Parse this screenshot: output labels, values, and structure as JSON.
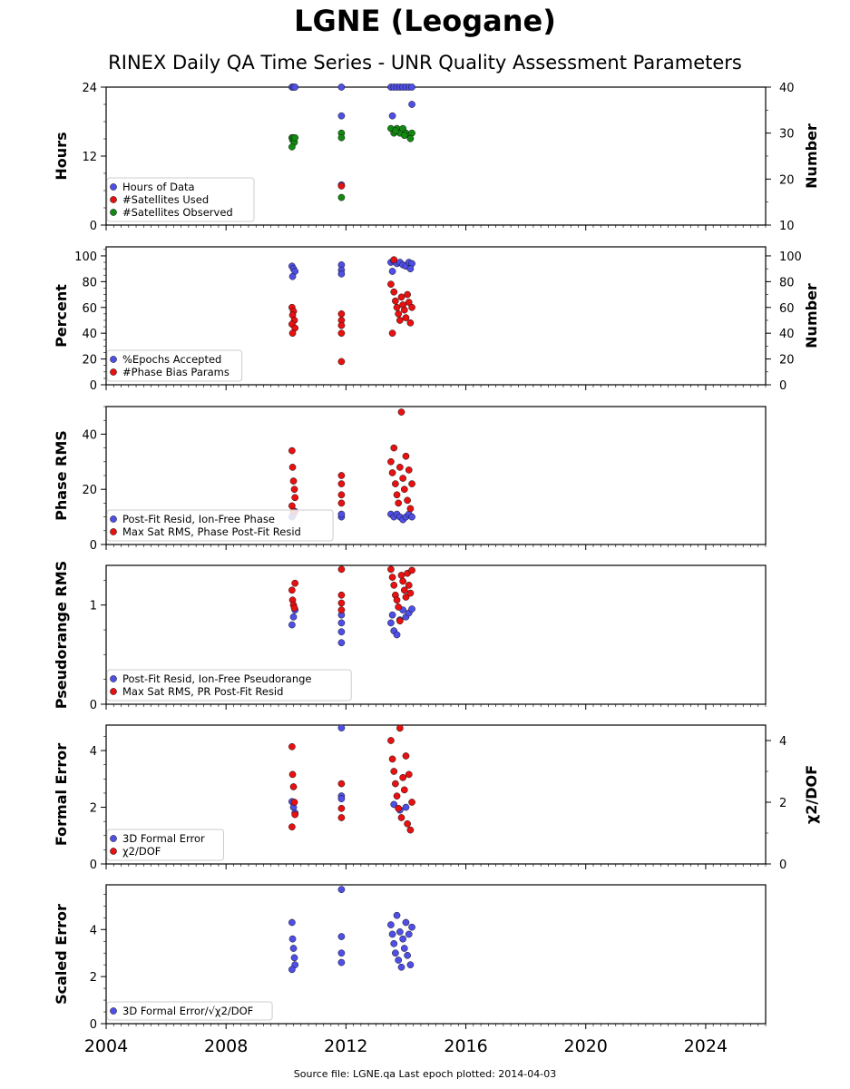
{
  "title": "LGNE (Leogane)",
  "subtitle": "RINEX Daily QA Time Series - UNR Quality Assessment Parameters",
  "footer": "Source file: LGNE.qa Last epoch plotted: 2014-04-03",
  "colors": {
    "blue": "#4f4fe8",
    "red": "#e81010",
    "green": "#128a12",
    "axis": "#000000"
  },
  "chart_data": [
    {
      "type": "scatter",
      "ylabel": "Hours",
      "ylabel_right": "Number",
      "xlim": [
        2004,
        2026
      ],
      "ylim": [
        0,
        24
      ],
      "ylim_right": [
        10,
        40
      ],
      "yticks": [
        0,
        12,
        24
      ],
      "yticks_right": [
        10,
        20,
        30,
        40
      ],
      "legend": "lower-left",
      "series": [
        {
          "name": "Hours of Data",
          "color": "blue",
          "axis": "left",
          "points": [
            [
              2010.2,
              24
            ],
            [
              2010.25,
              24
            ],
            [
              2010.3,
              24
            ],
            [
              2011.85,
              24
            ],
            [
              2011.85,
              19
            ],
            [
              2011.85,
              7
            ],
            [
              2013.5,
              24
            ],
            [
              2013.6,
              24
            ],
            [
              2013.7,
              24
            ],
            [
              2013.8,
              24
            ],
            [
              2013.9,
              24
            ],
            [
              2014.0,
              24
            ],
            [
              2014.1,
              24
            ],
            [
              2014.2,
              24
            ],
            [
              2013.55,
              19
            ],
            [
              2014.2,
              21
            ]
          ]
        },
        {
          "name": "#Satellites Used",
          "color": "red",
          "axis": "right",
          "points": [
            [
              2011.85,
              18.5
            ]
          ]
        },
        {
          "name": "#Satellites Observed",
          "color": "green",
          "axis": "right",
          "points": [
            [
              2010.2,
              29
            ],
            [
              2010.22,
              28.5
            ],
            [
              2010.25,
              29
            ],
            [
              2010.28,
              28
            ],
            [
              2010.3,
              29
            ],
            [
              2010.2,
              27
            ],
            [
              2011.85,
              30
            ],
            [
              2011.85,
              29
            ],
            [
              2011.85,
              16
            ],
            [
              2013.5,
              31
            ],
            [
              2013.6,
              30
            ],
            [
              2013.7,
              31
            ],
            [
              2013.8,
              30
            ],
            [
              2013.9,
              31
            ],
            [
              2014.0,
              30
            ],
            [
              2014.1,
              29.5
            ],
            [
              2014.2,
              30
            ],
            [
              2013.65,
              30.5
            ],
            [
              2013.95,
              29.5
            ],
            [
              2014.15,
              28.8
            ]
          ]
        }
      ]
    },
    {
      "type": "scatter",
      "ylabel": "Percent",
      "ylabel_right": "Number",
      "xlim": [
        2004,
        2026
      ],
      "ylim": [
        0,
        107
      ],
      "ylim_right": [
        0,
        107
      ],
      "yticks": [
        0,
        20,
        40,
        60,
        80,
        100
      ],
      "yticks_right": [
        0,
        20,
        40,
        60,
        80,
        100
      ],
      "legend": "lower-left",
      "series": [
        {
          "name": "%Epochs Accepted",
          "color": "blue",
          "axis": "left",
          "points": [
            [
              2010.2,
              92
            ],
            [
              2010.25,
              90
            ],
            [
              2010.3,
              88
            ],
            [
              2010.22,
              84
            ],
            [
              2011.85,
              93
            ],
            [
              2011.85,
              89
            ],
            [
              2011.85,
              86
            ],
            [
              2013.5,
              95
            ],
            [
              2013.6,
              96
            ],
            [
              2013.7,
              94
            ],
            [
              2013.8,
              95
            ],
            [
              2013.9,
              93
            ],
            [
              2014.0,
              92
            ],
            [
              2014.1,
              95
            ],
            [
              2014.2,
              94
            ],
            [
              2013.55,
              88
            ],
            [
              2014.15,
              90
            ]
          ]
        },
        {
          "name": "#Phase Bias Params",
          "color": "red",
          "axis": "right",
          "points": [
            [
              2010.2,
              60
            ],
            [
              2010.25,
              57
            ],
            [
              2010.22,
              54
            ],
            [
              2010.28,
              50
            ],
            [
              2010.2,
              47
            ],
            [
              2010.3,
              44
            ],
            [
              2010.22,
              40
            ],
            [
              2011.85,
              55
            ],
            [
              2011.85,
              50
            ],
            [
              2011.85,
              46
            ],
            [
              2011.85,
              40
            ],
            [
              2011.85,
              18
            ],
            [
              2013.5,
              78
            ],
            [
              2013.55,
              40
            ],
            [
              2013.6,
              72
            ],
            [
              2013.65,
              65
            ],
            [
              2013.7,
              60
            ],
            [
              2013.75,
              55
            ],
            [
              2013.8,
              50
            ],
            [
              2013.85,
              68
            ],
            [
              2013.9,
              62
            ],
            [
              2013.95,
              58
            ],
            [
              2014.0,
              52
            ],
            [
              2014.05,
              70
            ],
            [
              2014.1,
              64
            ],
            [
              2014.15,
              48
            ],
            [
              2014.2,
              60
            ],
            [
              2013.6,
              97
            ]
          ]
        }
      ]
    },
    {
      "type": "scatter",
      "ylabel": "Phase RMS",
      "xlim": [
        2004,
        2026
      ],
      "ylim": [
        0,
        50
      ],
      "yticks": [
        0,
        20,
        40
      ],
      "legend": "lower-left",
      "series": [
        {
          "name": "Post-Fit Resid, Ion-Free Phase",
          "color": "blue",
          "axis": "left",
          "points": [
            [
              2010.2,
              10
            ],
            [
              2010.25,
              11
            ],
            [
              2010.3,
              12
            ],
            [
              2011.85,
              10
            ],
            [
              2011.85,
              11
            ],
            [
              2013.5,
              11
            ],
            [
              2013.6,
              10
            ],
            [
              2013.7,
              11
            ],
            [
              2013.8,
              10
            ],
            [
              2013.9,
              9
            ],
            [
              2014.0,
              10
            ],
            [
              2014.1,
              11
            ],
            [
              2014.2,
              10
            ]
          ]
        },
        {
          "name": "Max Sat RMS, Phase Post-Fit Resid",
          "color": "red",
          "axis": "left",
          "points": [
            [
              2010.2,
              34
            ],
            [
              2010.22,
              28
            ],
            [
              2010.25,
              23
            ],
            [
              2010.28,
              20
            ],
            [
              2010.3,
              17
            ],
            [
              2010.2,
              14
            ],
            [
              2010.25,
              12
            ],
            [
              2011.85,
              25
            ],
            [
              2011.85,
              22
            ],
            [
              2011.85,
              18
            ],
            [
              2011.85,
              15
            ],
            [
              2013.5,
              30
            ],
            [
              2013.55,
              26
            ],
            [
              2013.6,
              35
            ],
            [
              2013.65,
              22
            ],
            [
              2013.7,
              18
            ],
            [
              2013.75,
              15
            ],
            [
              2013.8,
              28
            ],
            [
              2013.85,
              48
            ],
            [
              2013.9,
              24
            ],
            [
              2013.95,
              20
            ],
            [
              2014.0,
              32
            ],
            [
              2014.05,
              16
            ],
            [
              2014.1,
              27
            ],
            [
              2014.15,
              13
            ],
            [
              2014.2,
              22
            ]
          ]
        }
      ]
    },
    {
      "type": "scatter",
      "ylabel": "Pseudorange RMS",
      "xlim": [
        2004,
        2026
      ],
      "ylim": [
        0,
        1.4
      ],
      "yticks": [
        0,
        1
      ],
      "legend": "lower-left",
      "series": [
        {
          "name": "Post-Fit Resid, Ion-Free Pseudorange",
          "color": "blue",
          "axis": "left",
          "points": [
            [
              2010.2,
              0.8
            ],
            [
              2010.25,
              0.88
            ],
            [
              2010.3,
              0.95
            ],
            [
              2011.85,
              0.62
            ],
            [
              2011.85,
              0.73
            ],
            [
              2011.85,
              0.82
            ],
            [
              2011.85,
              0.9
            ],
            [
              2013.5,
              0.82
            ],
            [
              2013.55,
              0.9
            ],
            [
              2013.6,
              0.74
            ],
            [
              2013.7,
              0.7
            ],
            [
              2013.8,
              0.85
            ],
            [
              2013.9,
              0.95
            ],
            [
              2014.0,
              0.88
            ],
            [
              2014.1,
              0.92
            ],
            [
              2014.2,
              0.96
            ]
          ]
        },
        {
          "name": "Max Sat RMS, PR Post-Fit Resid",
          "color": "red",
          "axis": "left",
          "points": [
            [
              2010.2,
              1.15
            ],
            [
              2010.22,
              1.05
            ],
            [
              2010.25,
              1.0
            ],
            [
              2010.28,
              0.97
            ],
            [
              2010.3,
              1.22
            ],
            [
              2011.85,
              1.36
            ],
            [
              2011.85,
              1.1
            ],
            [
              2011.85,
              1.02
            ],
            [
              2011.85,
              0.95
            ],
            [
              2013.5,
              1.36
            ],
            [
              2013.55,
              1.28
            ],
            [
              2013.6,
              1.2
            ],
            [
              2013.65,
              1.1
            ],
            [
              2013.7,
              1.05
            ],
            [
              2013.75,
              0.98
            ],
            [
              2013.8,
              0.84
            ],
            [
              2013.85,
              1.3
            ],
            [
              2013.9,
              1.24
            ],
            [
              2013.95,
              1.15
            ],
            [
              2014.0,
              1.08
            ],
            [
              2014.05,
              1.32
            ],
            [
              2014.1,
              1.2
            ],
            [
              2014.15,
              1.12
            ],
            [
              2014.2,
              1.35
            ]
          ]
        }
      ]
    },
    {
      "type": "scatter",
      "ylabel": "Formal Error",
      "ylabel_right": "χ2/DOF",
      "xlim": [
        2004,
        2026
      ],
      "ylim": [
        0,
        4.9
      ],
      "ylim_right": [
        0,
        4.5
      ],
      "yticks": [
        0,
        2,
        4
      ],
      "yticks_right": [
        0,
        2,
        4
      ],
      "legend": "lower-left",
      "series": [
        {
          "name": "3D Formal Error",
          "color": "blue",
          "axis": "left",
          "points": [
            [
              2010.2,
              2.2
            ],
            [
              2010.25,
              2.0
            ],
            [
              2010.3,
              1.8
            ],
            [
              2011.85,
              4.8
            ],
            [
              2011.85,
              2.4
            ],
            [
              2011.85,
              2.3
            ],
            [
              2013.6,
              2.1
            ],
            [
              2013.8,
              1.9
            ],
            [
              2014.0,
              2.0
            ]
          ]
        },
        {
          "name": "χ2/DOF",
          "color": "red",
          "axis": "right",
          "points": [
            [
              2010.2,
              3.8
            ],
            [
              2010.22,
              2.9
            ],
            [
              2010.25,
              2.5
            ],
            [
              2010.28,
              2.0
            ],
            [
              2010.3,
              1.6
            ],
            [
              2010.2,
              1.2
            ],
            [
              2011.85,
              2.6
            ],
            [
              2011.85,
              1.8
            ],
            [
              2011.85,
              1.5
            ],
            [
              2013.5,
              4.0
            ],
            [
              2013.55,
              3.4
            ],
            [
              2013.6,
              3.0
            ],
            [
              2013.65,
              2.6
            ],
            [
              2013.7,
              2.2
            ],
            [
              2013.75,
              1.8
            ],
            [
              2013.8,
              4.4
            ],
            [
              2013.85,
              1.5
            ],
            [
              2013.9,
              2.8
            ],
            [
              2013.95,
              2.4
            ],
            [
              2014.0,
              3.5
            ],
            [
              2014.05,
              1.3
            ],
            [
              2014.1,
              2.9
            ],
            [
              2014.15,
              1.1
            ],
            [
              2014.2,
              2.0
            ]
          ]
        }
      ]
    },
    {
      "type": "scatter",
      "ylabel": "Scaled Error",
      "xlim": [
        2004,
        2026
      ],
      "ylim": [
        0,
        5.9
      ],
      "yticks": [
        0,
        2,
        4
      ],
      "xticks": [
        2004,
        2008,
        2012,
        2016,
        2020,
        2024
      ],
      "legend": "lower-left",
      "series": [
        {
          "name": "3D Formal Error/√χ2/DOF",
          "color": "blue",
          "axis": "left",
          "points": [
            [
              2010.2,
              4.3
            ],
            [
              2010.22,
              3.6
            ],
            [
              2010.25,
              3.2
            ],
            [
              2010.28,
              2.8
            ],
            [
              2010.3,
              2.5
            ],
            [
              2010.2,
              2.3
            ],
            [
              2011.85,
              5.7
            ],
            [
              2011.85,
              3.7
            ],
            [
              2011.85,
              3.0
            ],
            [
              2011.85,
              2.6
            ],
            [
              2013.5,
              4.2
            ],
            [
              2013.55,
              3.8
            ],
            [
              2013.6,
              3.4
            ],
            [
              2013.65,
              3.0
            ],
            [
              2013.7,
              4.6
            ],
            [
              2013.75,
              2.7
            ],
            [
              2013.8,
              3.9
            ],
            [
              2013.85,
              2.4
            ],
            [
              2013.9,
              3.6
            ],
            [
              2013.95,
              3.2
            ],
            [
              2014.0,
              4.3
            ],
            [
              2014.05,
              2.9
            ],
            [
              2014.1,
              3.8
            ],
            [
              2014.15,
              2.5
            ],
            [
              2014.2,
              4.1
            ]
          ]
        }
      ]
    }
  ]
}
